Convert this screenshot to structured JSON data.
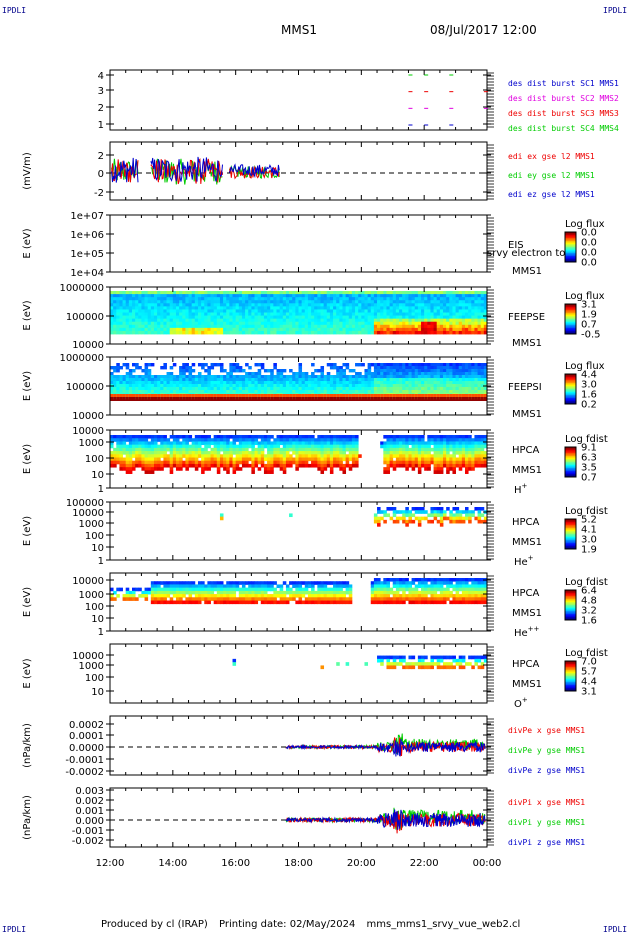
{
  "header": {
    "corner_label": "IPDLI",
    "spacecraft": "MMS1",
    "datetime": "08/Jul/2017 12:00"
  },
  "footer": {
    "produced_by": "Produced by cl (IRAP)",
    "printing_date": "Printing date: 02/May/2024",
    "script_name": "mms_mms1_srvy_vue_web2.cl"
  },
  "colors": {
    "blue": "#0000cc",
    "magenta": "#e000e0",
    "red": "#ee0000",
    "green": "#00cc00"
  },
  "chart_data": [
    {
      "type": "scatter",
      "panel": "burst",
      "ylabel": "",
      "yticks": [
        "1",
        "2",
        "3",
        "4"
      ],
      "ylim": [
        0.7,
        4.3
      ],
      "series": [
        {
          "name": "des dist burst SC1 MMS1",
          "color": "blue",
          "y": 1,
          "x": [
            21.5,
            22.0,
            22.8
          ]
        },
        {
          "name": "des dist burst SC2 MMS2",
          "color": "magenta",
          "y": 2,
          "x": [
            21.5,
            22.0,
            22.8,
            23.9
          ]
        },
        {
          "name": "des dist burst SC3 MMS3",
          "color": "red",
          "y": 3,
          "x": [
            21.5,
            22.0,
            22.8,
            23.9
          ]
        },
        {
          "name": "des dist burst SC4 MMS4",
          "color": "green",
          "y": 4,
          "x": [
            21.5,
            22.0,
            22.8
          ]
        }
      ]
    },
    {
      "type": "line",
      "panel": "edi",
      "ylabel": "(mV/m)",
      "yticks": [
        "-2",
        "0",
        "2"
      ],
      "ylim": [
        -3,
        3
      ],
      "series": [
        {
          "name": "edi ex gse l2 MMS1",
          "color": "red"
        },
        {
          "name": "edi ey gse l2 MMS1",
          "color": "green"
        },
        {
          "name": "edi ez gse l2 MMS1",
          "color": "blue"
        }
      ]
    },
    {
      "type": "heatmap",
      "panel": "eis",
      "ylabel": "E (eV)",
      "yticks": [
        "1e+04",
        "1e+05",
        "1e+06",
        "1e+07"
      ],
      "labels": [
        "EIS",
        "MMS1"
      ],
      "overlap_text": "srvy electron to",
      "colorbar": {
        "title": "Log flux",
        "ticks": [
          "0.0",
          "0.0",
          "0.0",
          "0.0"
        ]
      }
    },
    {
      "type": "heatmap",
      "panel": "feepse",
      "ylabel": "E (eV)",
      "yticks": [
        "10000",
        "100000",
        "1000000"
      ],
      "labels": [
        "FEEPSE",
        "MMS1"
      ],
      "colorbar": {
        "title": "Log flux",
        "ticks": [
          "3.1",
          "1.9",
          "0.7",
          "-0.5"
        ]
      }
    },
    {
      "type": "heatmap",
      "panel": "feepsi",
      "ylabel": "E (eV)",
      "yticks": [
        "10000",
        "100000",
        "1000000"
      ],
      "labels": [
        "FEEPSI",
        "MMS1"
      ],
      "colorbar": {
        "title": "Log flux",
        "ticks": [
          "4.4",
          "3.0",
          "1.6",
          "0.2"
        ]
      }
    },
    {
      "type": "heatmap",
      "panel": "hpca_h",
      "ylabel": "E (eV)",
      "yticks": [
        "1",
        "10",
        "100",
        "1000",
        "10000"
      ],
      "labels": [
        "HPCA",
        "MMS1",
        "H+"
      ],
      "colorbar": {
        "title": "Log fdist",
        "ticks": [
          "9.1",
          "6.3",
          "3.5",
          "0.7"
        ]
      }
    },
    {
      "type": "heatmap",
      "panel": "hpca_he",
      "ylabel": "E (eV)",
      "yticks": [
        "1",
        "10",
        "100",
        "1000",
        "10000",
        "100000"
      ],
      "labels": [
        "HPCA",
        "MMS1",
        "He+"
      ],
      "colorbar": {
        "title": "Log fdist",
        "ticks": [
          "5.2",
          "4.1",
          "3.0",
          "1.9"
        ]
      }
    },
    {
      "type": "heatmap",
      "panel": "hpca_hepp",
      "ylabel": "E (eV)",
      "yticks": [
        "1",
        "10",
        "100",
        "1000",
        "10000"
      ],
      "labels": [
        "HPCA",
        "MMS1",
        "He++"
      ],
      "colorbar": {
        "title": "Log fdist",
        "ticks": [
          "6.4",
          "4.8",
          "3.2",
          "1.6"
        ]
      }
    },
    {
      "type": "heatmap",
      "panel": "hpca_o",
      "ylabel": "E (eV)",
      "yticks": [
        "10",
        "100",
        "1000",
        "10000"
      ],
      "labels": [
        "HPCA",
        "MMS1",
        "O+"
      ],
      "colorbar": {
        "title": "Log fdist",
        "ticks": [
          "7.0",
          "5.7",
          "4.4",
          "3.1"
        ]
      }
    },
    {
      "type": "line",
      "panel": "divpe",
      "ylabel": "(nPa/km)",
      "yticks": [
        "-0.0002",
        "-0.0001",
        "0.0000",
        "0.0001",
        "0.0002"
      ],
      "ylim": [
        -0.00025,
        0.00025
      ],
      "series": [
        {
          "name": "divPe x gse MMS1",
          "color": "red"
        },
        {
          "name": "divPe y gse MMS1",
          "color": "green"
        },
        {
          "name": "divPe z gse MMS1",
          "color": "blue"
        }
      ]
    },
    {
      "type": "line",
      "panel": "divpi",
      "ylabel": "(nPa/km)",
      "yticks": [
        "-0.002",
        "-0.001",
        "0.000",
        "0.001",
        "0.002",
        "0.003"
      ],
      "ylim": [
        -0.0025,
        0.0032
      ],
      "series": [
        {
          "name": "divPi x gse MMS1",
          "color": "red"
        },
        {
          "name": "divPi y gse MMS1",
          "color": "green"
        },
        {
          "name": "divPi z gse MMS1",
          "color": "blue"
        }
      ]
    }
  ],
  "x_axis": {
    "ticks": [
      "12:00",
      "14:00",
      "16:00",
      "18:00",
      "20:00",
      "22:00",
      "00:00"
    ],
    "tick_values": [
      12,
      14,
      16,
      18,
      20,
      22,
      24
    ],
    "xlim": [
      12,
      24
    ]
  }
}
